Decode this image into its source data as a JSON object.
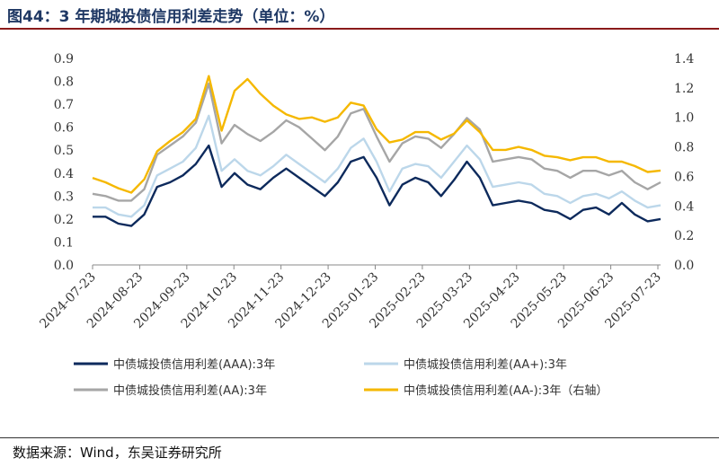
{
  "header": {
    "title": "图44：3 年期城投债信用利差走势（单位：%）"
  },
  "footer": {
    "source": "数据来源：Wind，东吴证券研究所"
  },
  "chart_data": {
    "type": "line",
    "title": "图44：3 年期城投债信用利差走势（单位：%）",
    "x_labels": [
      "2024-07-23",
      "2024-08-23",
      "2024-09-23",
      "2024-10-23",
      "2024-11-23",
      "2024-12-23",
      "2025-01-23",
      "2025-02-23",
      "2025-03-23",
      "2025-04-23",
      "2025-05-23",
      "2025-06-23",
      "2025-07-23"
    ],
    "left_axis": {
      "ylim": [
        0,
        0.9
      ],
      "ticks": [
        "0.0",
        "0.1",
        "0.2",
        "0.3",
        "0.4",
        "0.5",
        "0.6",
        "0.7",
        "0.8",
        "0.9"
      ]
    },
    "right_axis": {
      "ylim": [
        0,
        1.4
      ],
      "ticks": [
        "0.0",
        "0.2",
        "0.4",
        "0.6",
        "0.8",
        "1.0",
        "1.2",
        "1.4"
      ]
    },
    "series": [
      {
        "name": "中债城投债信用利差(AAA):3年",
        "axis": "left",
        "color": "#0d2a5c",
        "values": [
          0.21,
          0.21,
          0.18,
          0.17,
          0.22,
          0.34,
          0.36,
          0.39,
          0.44,
          0.52,
          0.34,
          0.4,
          0.35,
          0.33,
          0.38,
          0.42,
          0.38,
          0.34,
          0.3,
          0.36,
          0.45,
          0.47,
          0.38,
          0.26,
          0.35,
          0.38,
          0.36,
          0.3,
          0.37,
          0.45,
          0.38,
          0.26,
          0.27,
          0.28,
          0.27,
          0.24,
          0.23,
          0.2,
          0.24,
          0.25,
          0.22,
          0.27,
          0.22,
          0.19,
          0.2
        ]
      },
      {
        "name": "中债城投债信用利差(AA+):3年",
        "axis": "left",
        "color": "#bcd7ea",
        "values": [
          0.25,
          0.25,
          0.22,
          0.21,
          0.26,
          0.39,
          0.42,
          0.45,
          0.51,
          0.65,
          0.41,
          0.46,
          0.41,
          0.39,
          0.43,
          0.48,
          0.44,
          0.4,
          0.36,
          0.42,
          0.51,
          0.55,
          0.45,
          0.32,
          0.42,
          0.44,
          0.43,
          0.38,
          0.45,
          0.52,
          0.46,
          0.34,
          0.35,
          0.36,
          0.35,
          0.31,
          0.3,
          0.27,
          0.3,
          0.31,
          0.29,
          0.32,
          0.28,
          0.25,
          0.26
        ]
      },
      {
        "name": "中债城投债信用利差(AA):3年",
        "axis": "left",
        "color": "#a6a6a6",
        "values": [
          0.31,
          0.3,
          0.28,
          0.28,
          0.33,
          0.48,
          0.52,
          0.56,
          0.62,
          0.79,
          0.53,
          0.61,
          0.57,
          0.54,
          0.58,
          0.63,
          0.6,
          0.55,
          0.5,
          0.56,
          0.66,
          0.68,
          0.56,
          0.45,
          0.53,
          0.56,
          0.55,
          0.51,
          0.57,
          0.64,
          0.59,
          0.45,
          0.46,
          0.47,
          0.46,
          0.42,
          0.41,
          0.38,
          0.41,
          0.41,
          0.39,
          0.41,
          0.36,
          0.33,
          0.36
        ]
      },
      {
        "name": "中债城投债信用利差(AA-):3年（右轴）",
        "axis": "right",
        "color": "#f5b800",
        "values": [
          0.59,
          0.56,
          0.52,
          0.49,
          0.58,
          0.77,
          0.84,
          0.9,
          0.99,
          1.28,
          0.91,
          1.18,
          1.26,
          1.16,
          1.08,
          1.02,
          0.99,
          1.0,
          0.97,
          1.0,
          1.1,
          1.08,
          0.92,
          0.83,
          0.85,
          0.9,
          0.9,
          0.85,
          0.89,
          0.98,
          0.9,
          0.78,
          0.78,
          0.8,
          0.78,
          0.74,
          0.73,
          0.71,
          0.73,
          0.73,
          0.7,
          0.7,
          0.67,
          0.63,
          0.64
        ]
      }
    ]
  }
}
